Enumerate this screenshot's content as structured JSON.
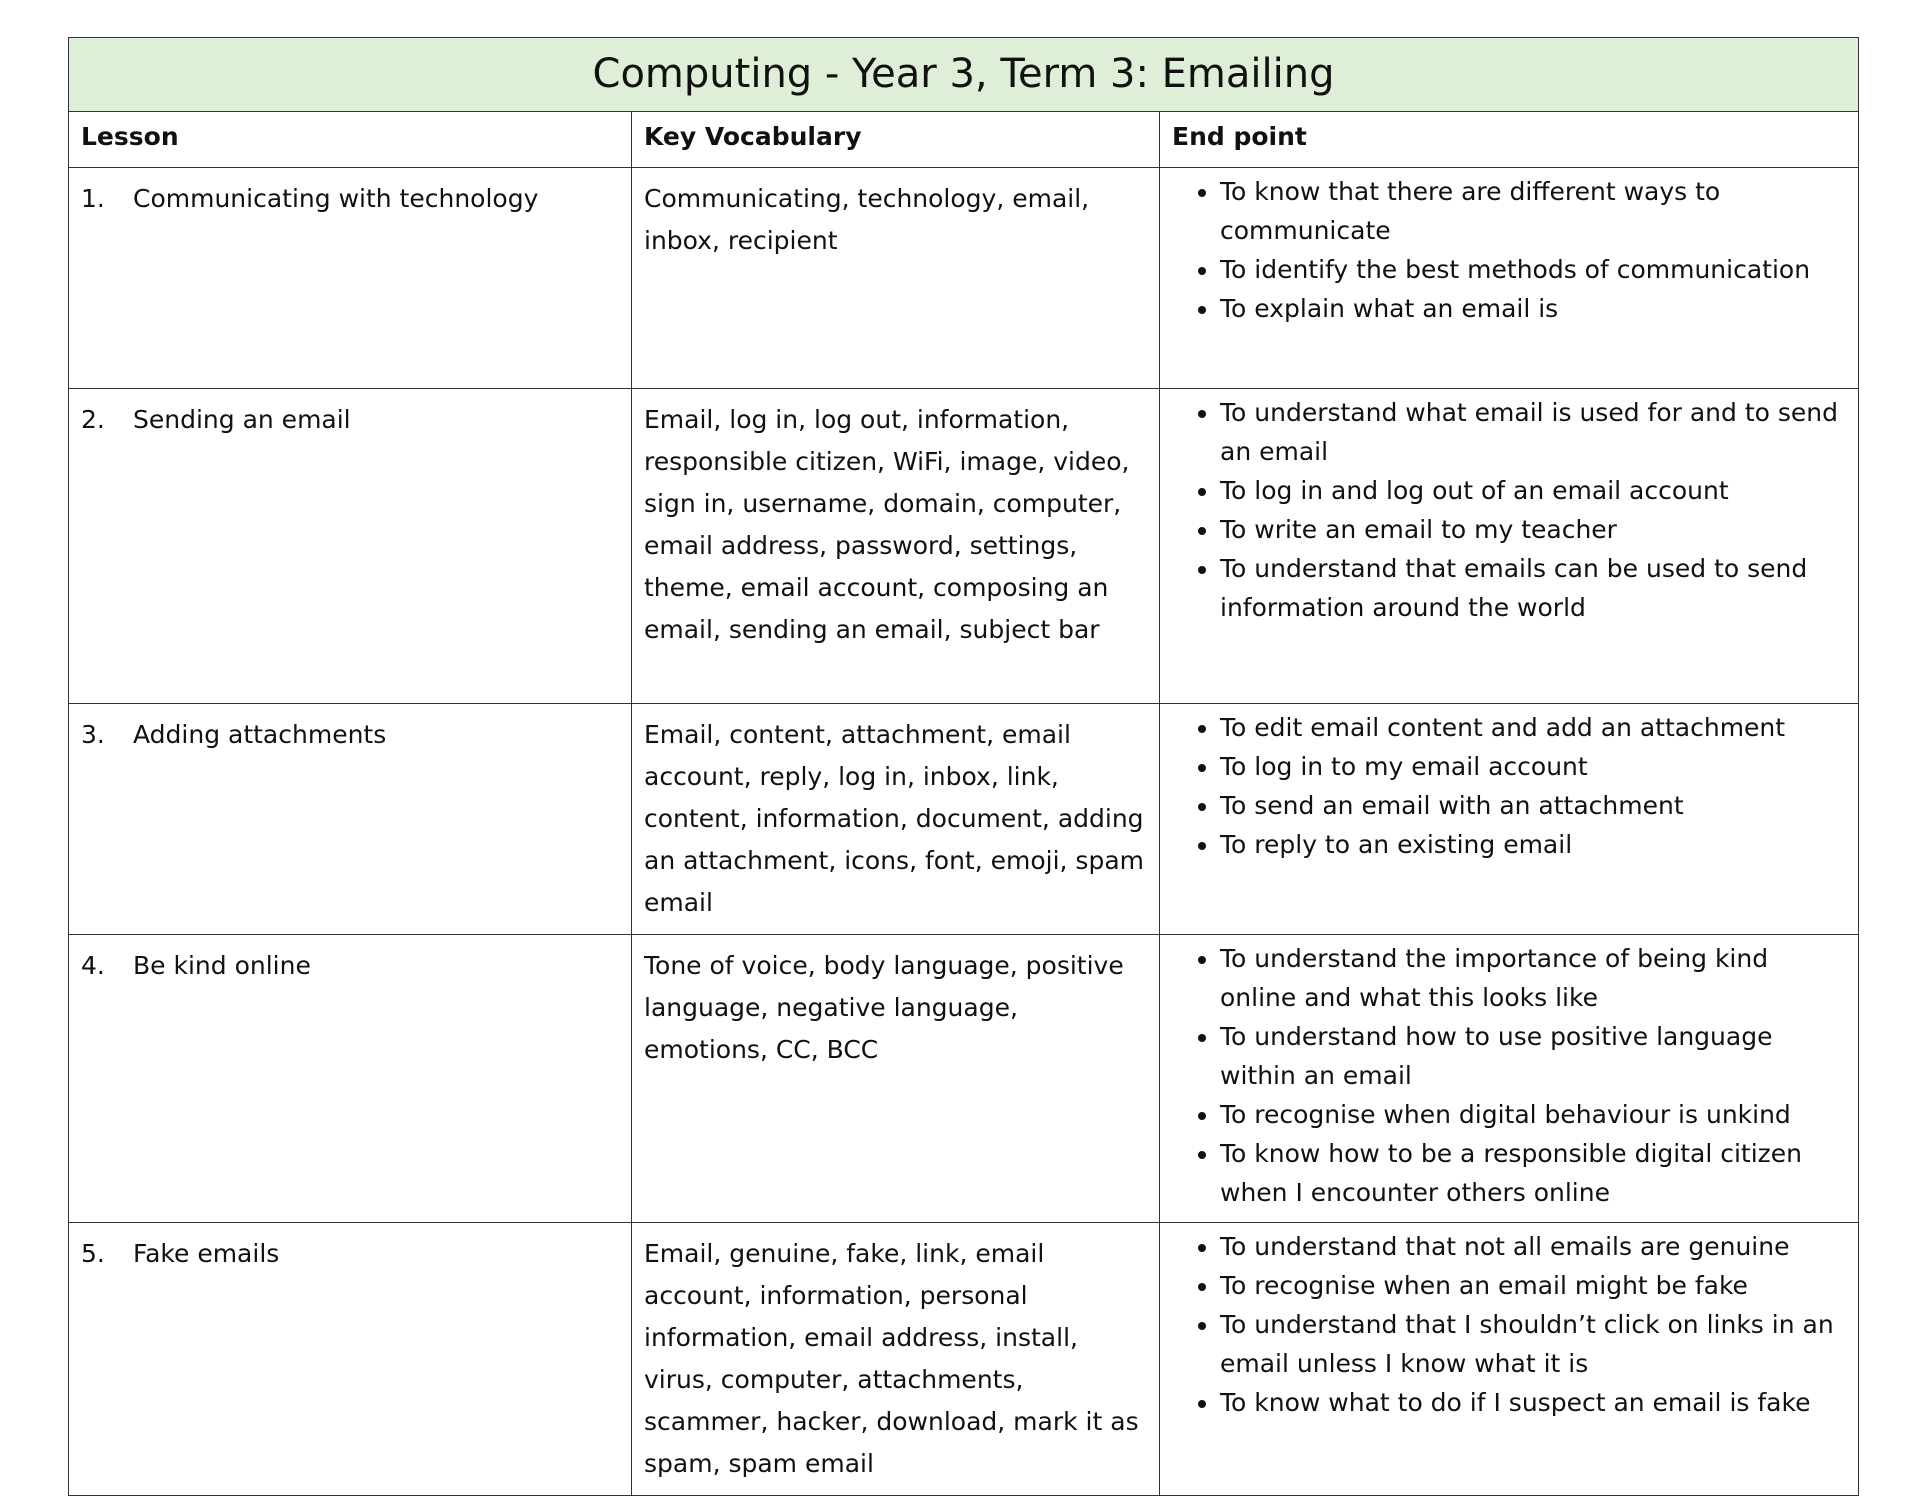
{
  "title": "Computing - Year 3, Term 3: Emailing",
  "table": {
    "headers": [
      "Lesson",
      "Key Vocabulary",
      "End point"
    ],
    "rows": [
      {
        "number": "1.",
        "lesson": "Communicating with technology",
        "vocabulary": "Communicating, technology, email, inbox, recipient",
        "endpoints": [
          "To know that there are different ways to communicate",
          "To identify the best methods of communication",
          "To explain what an email is"
        ]
      },
      {
        "number": "2.",
        "lesson": "Sending an email",
        "vocabulary": "Email, log in, log out, information, responsible citizen, WiFi, image, video, sign in, username, domain, computer, email address, password, settings, theme, email account, composing an email, sending an email, subject bar",
        "endpoints": [
          "To understand what email is used for and to send an email",
          "To log in and log out of an email account",
          "To write an email to my teacher",
          "To understand that emails can be used to send information around the world"
        ]
      },
      {
        "number": "3.",
        "lesson": "Adding attachments",
        "vocabulary": "Email, content, attachment, email account, reply, log in, inbox, link, content, information, document, adding an attachment, icons, font, emoji, spam email",
        "endpoints": [
          "To edit email content and add an attachment",
          "To log in to my email account",
          "To send an email with an attachment",
          "To reply to an existing email"
        ]
      },
      {
        "number": "4.",
        "lesson": "Be kind online",
        "vocabulary": "Tone of voice, body language, positive language, negative language, emotions, CC, BCC",
        "endpoints": [
          "To understand the importance of being kind online and what this looks like",
          "To understand how to use positive language within an email",
          "To recognise when digital behaviour is unkind",
          "To know how to be a responsible digital citizen when I encounter others online"
        ]
      },
      {
        "number": "5.",
        "lesson": "Fake emails",
        "vocabulary": "Email, genuine, fake, link, email account, information, personal information, email address, install, virus, computer, attachments, scammer, hacker, download, mark it as spam, spam email",
        "endpoints": [
          "To understand that not all emails are genuine",
          "To recognise when an email might be fake",
          "To understand that I shouldn’t click on links in an email unless I know what it is",
          "To know what to do if I suspect an email is fake"
        ]
      }
    ]
  }
}
